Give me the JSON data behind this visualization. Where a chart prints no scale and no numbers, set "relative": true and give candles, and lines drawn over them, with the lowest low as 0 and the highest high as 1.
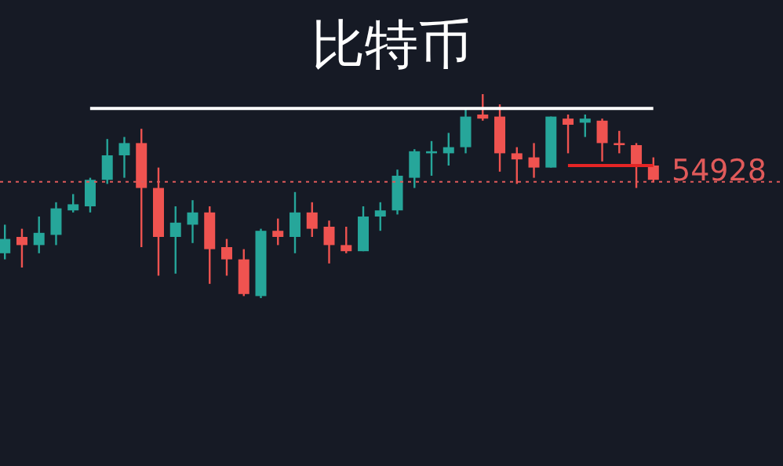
{
  "chart_data": {
    "type": "candlestick",
    "title": "比特币",
    "relative": true,
    "tick_labels": false,
    "categories": [
      null,
      null,
      null,
      null,
      null,
      null,
      null,
      null,
      null,
      null,
      null,
      null,
      null,
      null,
      null,
      null,
      null,
      null,
      null,
      null,
      null,
      null,
      null,
      null,
      null,
      null,
      null,
      null,
      null,
      null,
      null,
      null,
      null,
      null,
      null,
      null,
      null,
      null,
      null
    ],
    "ohlc": [
      [
        0.22,
        0.36,
        0.19,
        0.29
      ],
      [
        0.3,
        0.34,
        0.15,
        0.26
      ],
      [
        0.26,
        0.4,
        0.22,
        0.32
      ],
      [
        0.31,
        0.47,
        0.26,
        0.44
      ],
      [
        0.43,
        0.51,
        0.42,
        0.46
      ],
      [
        0.45,
        0.59,
        0.42,
        0.58
      ],
      [
        0.58,
        0.78,
        0.56,
        0.7
      ],
      [
        0.7,
        0.79,
        0.59,
        0.76
      ],
      [
        0.76,
        0.83,
        0.25,
        0.54
      ],
      [
        0.54,
        0.64,
        0.11,
        0.3
      ],
      [
        0.3,
        0.45,
        0.12,
        0.37
      ],
      [
        0.36,
        0.48,
        0.27,
        0.42
      ],
      [
        0.42,
        0.45,
        0.07,
        0.24
      ],
      [
        0.25,
        0.29,
        0.11,
        0.19
      ],
      [
        0.19,
        0.24,
        0.01,
        0.02
      ],
      [
        0.01,
        0.34,
        0,
        0.33
      ],
      [
        0.33,
        0.39,
        0.26,
        0.3
      ],
      [
        0.3,
        0.52,
        0.22,
        0.42
      ],
      [
        0.42,
        0.47,
        0.3,
        0.34
      ],
      [
        0.35,
        0.38,
        0.17,
        0.26
      ],
      [
        0.26,
        0.35,
        0.22,
        0.23
      ],
      [
        0.23,
        0.45,
        0.23,
        0.4
      ],
      [
        0.4,
        0.47,
        0.33,
        0.43
      ],
      [
        0.43,
        0.63,
        0.41,
        0.6
      ],
      [
        0.59,
        0.73,
        0.54,
        0.72
      ],
      [
        0.71,
        0.77,
        0.6,
        0.72
      ],
      [
        0.71,
        0.81,
        0.65,
        0.74
      ],
      [
        0.74,
        0.93,
        0.71,
        0.89
      ],
      [
        0.9,
        1,
        0.87,
        0.88
      ],
      [
        0.89,
        0.95,
        0.62,
        0.71
      ],
      [
        0.71,
        0.74,
        0.56,
        0.68
      ],
      [
        0.69,
        0.76,
        0.59,
        0.64
      ],
      [
        0.64,
        0.89,
        0.64,
        0.89
      ],
      [
        0.88,
        0.9,
        0.71,
        0.85
      ],
      [
        0.86,
        0.9,
        0.79,
        0.88
      ],
      [
        0.87,
        0.88,
        0.67,
        0.76
      ],
      [
        0.76,
        0.82,
        0.71,
        0.75
      ],
      [
        0.75,
        0.76,
        0.54,
        0.65
      ],
      [
        0.65,
        0.69,
        0.57,
        0.58
      ]
    ],
    "colors": [
      "#26a69a",
      "#ef5350",
      "#26a69a",
      "#26a69a",
      "#26a69a",
      "#26a69a",
      "#26a69a",
      "#26a69a",
      "#ef5350",
      "#ef5350",
      "#26a69a",
      "#26a69a",
      "#ef5350",
      "#ef5350",
      "#ef5350",
      "#26a69a",
      "#ef5350",
      "#26a69a",
      "#ef5350",
      "#ef5350",
      "#ef5350",
      "#26a69a",
      "#26a69a",
      "#26a69a",
      "#26a69a",
      "#26a69a",
      "#26a69a",
      "#26a69a",
      "#ef5350",
      "#ef5350",
      "#ef5350",
      "#ef5350",
      "#26a69a",
      "#ef5350",
      "#26a69a",
      "#ef5350",
      "#ef5350",
      "#ef5350",
      "#ef5350"
    ],
    "series": [
      {
        "type": "line",
        "color": "#ffffff",
        "values": [
          null,
          null,
          null,
          null,
          null,
          0.93,
          0.93,
          0.93,
          0.93,
          0.93,
          0.93,
          0.93,
          0.93,
          0.93,
          0.93,
          0.93,
          0.93,
          0.93,
          0.93,
          0.93,
          0.93,
          0.93,
          0.93,
          0.93,
          0.93,
          0.93,
          0.93,
          0.93,
          0.93,
          0.93,
          0.93,
          0.93,
          0.93,
          0.93,
          0.93,
          0.93,
          0.93,
          0.93,
          0.93
        ]
      },
      {
        "type": "line",
        "color": "#e52525",
        "values": [
          null,
          null,
          null,
          null,
          null,
          null,
          null,
          null,
          null,
          null,
          null,
          null,
          null,
          null,
          null,
          null,
          null,
          null,
          null,
          null,
          null,
          null,
          null,
          null,
          null,
          null,
          null,
          null,
          null,
          null,
          null,
          null,
          null,
          0.65,
          0.65,
          0.65,
          0.65,
          0.65,
          0.65
        ]
      }
    ],
    "ref_lines": [
      {
        "axis": "y",
        "value": 0.57,
        "color": "#e05a5a",
        "line_style": "dotted"
      }
    ],
    "annotations": [
      "54928"
    ]
  }
}
